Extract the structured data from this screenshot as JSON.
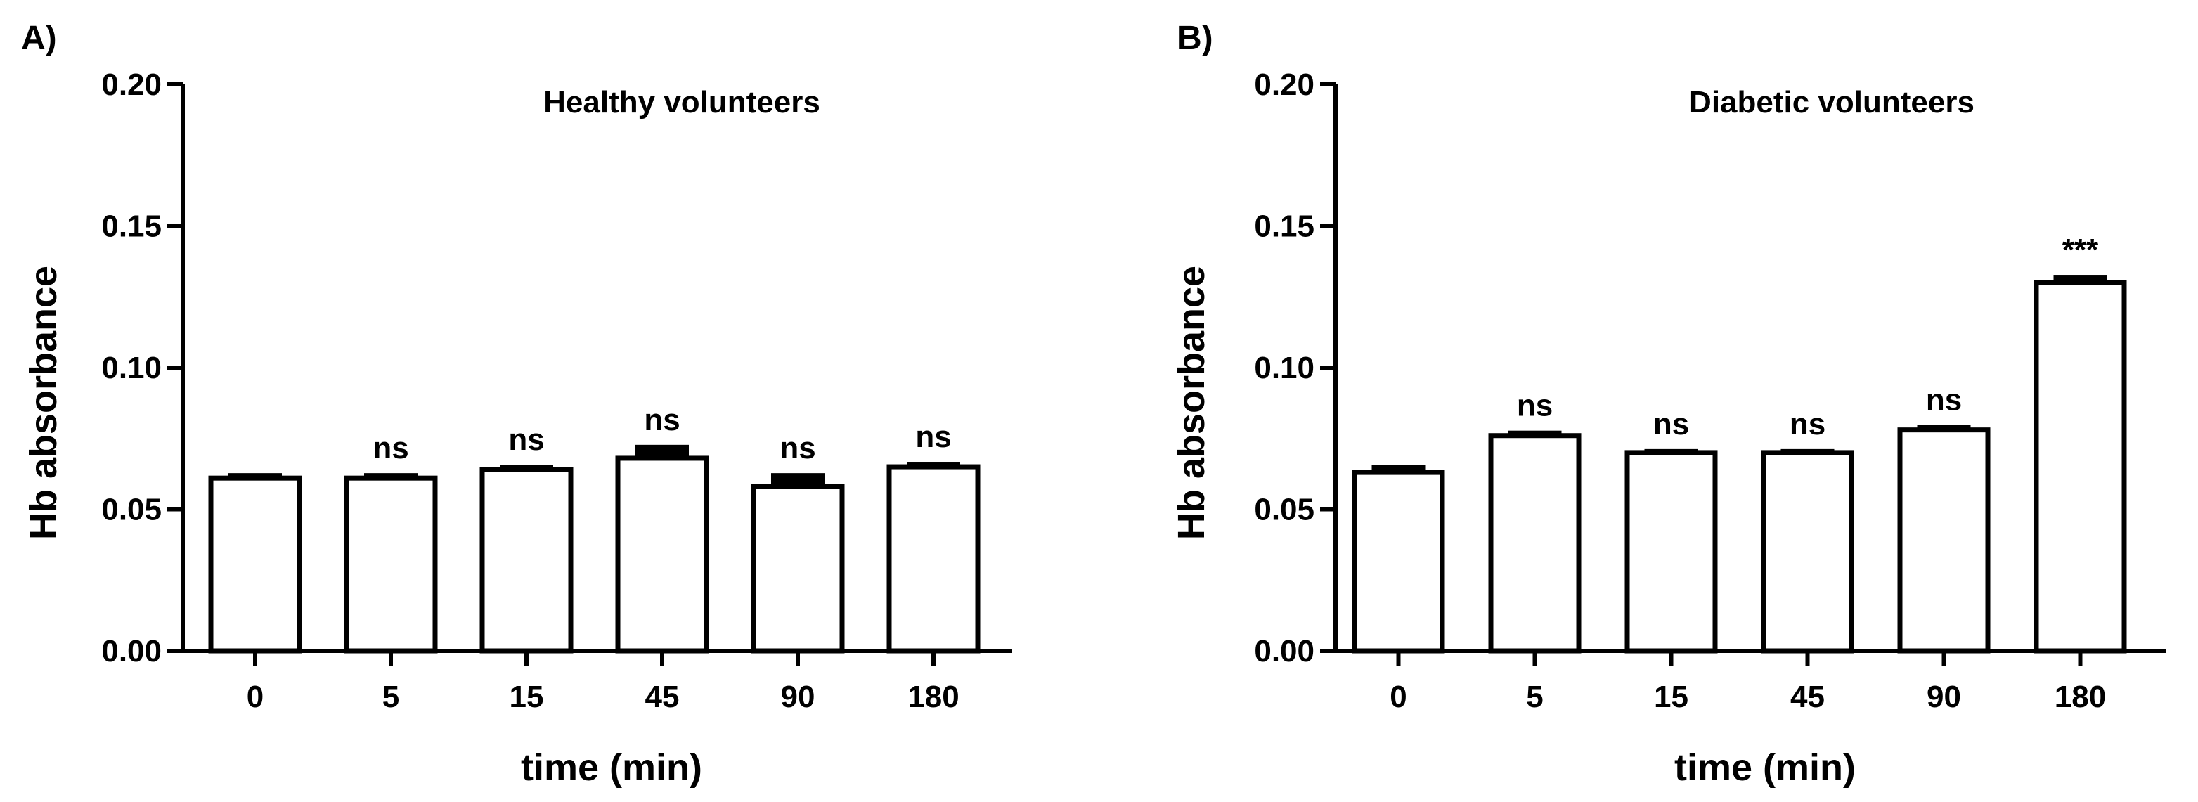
{
  "figure": {
    "background": "#ffffff",
    "ink": "#000000"
  },
  "chart_data": [
    {
      "type": "bar",
      "panel_label": "A)",
      "title": "Healthy volunteers",
      "xlabel": "time (min)",
      "ylabel": "Hb absorbance",
      "categories": [
        "0",
        "5",
        "15",
        "45",
        "90",
        "180"
      ],
      "values": [
        0.061,
        0.061,
        0.064,
        0.068,
        0.058,
        0.065
      ],
      "errors": [
        0.001,
        0.001,
        0.001,
        0.004,
        0.004,
        0.001
      ],
      "significance": [
        "",
        "ns",
        "ns",
        "ns",
        "ns",
        "ns"
      ],
      "ylim": [
        0,
        0.2
      ],
      "yticks": [
        "0.00",
        "0.05",
        "0.10",
        "0.15",
        "0.20"
      ],
      "bar_fill": "#ffffff",
      "bar_stroke": "#000000",
      "grid": false
    },
    {
      "type": "bar",
      "panel_label": "B)",
      "title": "Diabetic volunteers",
      "xlabel": "time (min)",
      "ylabel": "Hb absorbance",
      "categories": [
        "0",
        "5",
        "15",
        "45",
        "90",
        "180"
      ],
      "values": [
        0.063,
        0.076,
        0.07,
        0.07,
        0.078,
        0.13
      ],
      "errors": [
        0.002,
        0.001,
        0.0005,
        0.0005,
        0.001,
        0.002
      ],
      "significance": [
        "",
        "ns",
        "ns",
        "ns",
        "ns",
        "***"
      ],
      "ylim": [
        0,
        0.2
      ],
      "yticks": [
        "0.00",
        "0.05",
        "0.10",
        "0.15",
        "0.20"
      ],
      "bar_fill": "#ffffff",
      "bar_stroke": "#000000",
      "grid": false
    }
  ]
}
